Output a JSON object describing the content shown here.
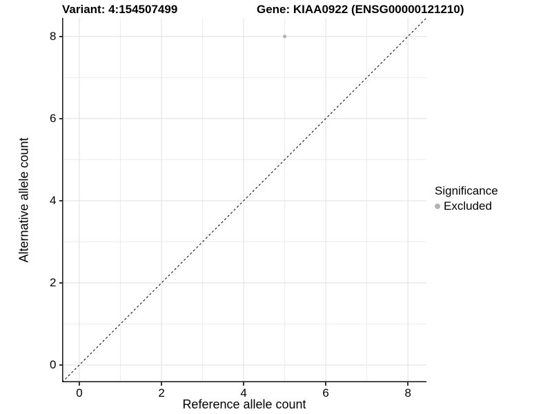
{
  "chart_data": {
    "type": "scatter",
    "titles": {
      "left": "Variant: 4:154507499",
      "right": "Gene: KIAA0922 (ENSG00000121210)"
    },
    "xlabel": "Reference allele count",
    "ylabel": "Alternative allele count",
    "xlim": [
      -0.42,
      8.45
    ],
    "ylim": [
      -0.42,
      8.45
    ],
    "xticks": [
      0,
      2,
      4,
      6,
      8
    ],
    "yticks": [
      0,
      2,
      4,
      6,
      8
    ],
    "grid": {
      "major": [
        0,
        2,
        4,
        6,
        8
      ],
      "minor": [
        1,
        3,
        5,
        7
      ]
    },
    "series": [
      {
        "name": "Excluded",
        "color": "#b3b3b3",
        "marker": "circle",
        "points": [
          {
            "x": 5,
            "y": 8
          }
        ]
      }
    ],
    "reference_line": {
      "kind": "identity y=x",
      "style": "dashed",
      "color": "#111111",
      "span": [
        -0.42,
        8.45
      ]
    },
    "legend": {
      "position": "right",
      "title": "Significance",
      "entries": [
        {
          "label": "Excluded",
          "color": "#b3b3b3",
          "marker": "circle"
        }
      ]
    }
  },
  "colors": {
    "background": "#ffffff",
    "grid_major": "#e2e2e2",
    "grid_minor": "#ececec",
    "axis_line": "#1f1f1f",
    "tick_mark": "#333333",
    "text": "#000000"
  }
}
